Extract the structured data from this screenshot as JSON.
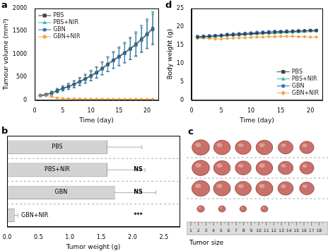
{
  "chart_data": [
    {
      "panel_label": "a",
      "type": "line",
      "x_label": "Time (day)",
      "y_label": "Tumour volume (mm³)",
      "x": [
        1,
        2,
        3,
        4,
        5,
        6,
        7,
        8,
        9,
        10,
        11,
        12,
        13,
        14,
        15,
        16,
        17,
        18,
        19,
        20,
        21
      ],
      "xlim": [
        0,
        22
      ],
      "xticks": [
        0,
        5,
        10,
        15,
        20
      ],
      "ylim": [
        0,
        2000
      ],
      "yticks": [
        0,
        500,
        1000,
        1500,
        2000
      ],
      "grid": false,
      "legend": "upper left",
      "series": [
        {
          "name": "PBS",
          "color": "#404040",
          "marker": "square",
          "values": [
            100,
            120,
            160,
            210,
            260,
            300,
            350,
            410,
            470,
            540,
            610,
            700,
            790,
            880,
            960,
            1040,
            1130,
            1230,
            1340,
            1450,
            1570
          ],
          "errors": [
            20,
            25,
            35,
            45,
            55,
            65,
            75,
            85,
            95,
            110,
            120,
            140,
            160,
            180,
            200,
            220,
            240,
            260,
            290,
            320,
            350
          ]
        },
        {
          "name": "PBS+NIR",
          "color": "#3cb8b0",
          "marker": "triangle",
          "values": [
            95,
            115,
            155,
            205,
            255,
            295,
            345,
            400,
            460,
            530,
            600,
            690,
            780,
            870,
            950,
            1030,
            1120,
            1220,
            1330,
            1440,
            1580
          ],
          "errors": [
            20,
            25,
            35,
            45,
            55,
            65,
            75,
            85,
            95,
            110,
            120,
            140,
            160,
            180,
            200,
            220,
            240,
            260,
            290,
            320,
            350
          ]
        },
        {
          "name": "GBN",
          "color": "#3a6fb5",
          "marker": "circle",
          "values": [
            100,
            118,
            150,
            200,
            250,
            290,
            340,
            395,
            455,
            520,
            590,
            680,
            770,
            860,
            940,
            1020,
            1110,
            1200,
            1310,
            1430,
            1540
          ],
          "errors": [
            20,
            25,
            30,
            40,
            50,
            60,
            70,
            80,
            90,
            100,
            115,
            130,
            150,
            170,
            190,
            210,
            230,
            250,
            270,
            300,
            330
          ]
        },
        {
          "name": "GBN+NIR",
          "color": "#f5a34a",
          "marker": "diamond",
          "values": [
            95,
            100,
            80,
            45,
            35,
            30,
            28,
            25,
            25,
            22,
            22,
            20,
            20,
            20,
            18,
            18,
            18,
            18,
            18,
            18,
            18
          ],
          "errors": [
            15,
            15,
            12,
            8,
            6,
            5,
            5,
            5,
            5,
            5,
            5,
            5,
            5,
            5,
            5,
            5,
            5,
            5,
            5,
            5,
            5
          ]
        }
      ]
    },
    {
      "panel_label": "b",
      "type": "bar",
      "orientation": "horizontal",
      "x_label": "Tumor weight (g)",
      "categories": [
        "PBS",
        "PBS+NIR",
        "GBN",
        "GBN+NIR"
      ],
      "values": [
        1.6,
        1.6,
        1.72,
        0.12
      ],
      "errors": [
        0.55,
        0.6,
        0.65,
        0.05
      ],
      "annotations": [
        null,
        "NS",
        "NS",
        "***"
      ],
      "color": "#d3d3d3",
      "xlim": [
        0,
        2.75
      ],
      "xticks": [
        {
          "value": 0,
          "label": "0.0"
        },
        0.5,
        {
          "value": 1,
          "label": "1.0"
        },
        1.5,
        {
          "value": 2,
          "label": "2.0"
        },
        2.5
      ],
      "tick_labels": "x",
      "grid": false
    },
    {
      "panel_label": "d",
      "type": "line",
      "x_label": "Time (day)",
      "y_label": "Body weight (g)",
      "x": [
        1,
        2,
        3,
        4,
        5,
        6,
        7,
        8,
        9,
        10,
        11,
        12,
        13,
        14,
        15,
        16,
        17,
        18,
        19,
        20,
        21
      ],
      "xlim": [
        0,
        22
      ],
      "xticks": [
        0,
        5,
        10,
        15,
        20
      ],
      "ylim": [
        0,
        25
      ],
      "yticks": [
        0,
        5,
        10,
        15,
        20,
        25
      ],
      "grid": false,
      "legend": "lower right",
      "series": [
        {
          "name": "PBS",
          "color": "#404040",
          "marker": "square",
          "values": [
            17.2,
            17.3,
            17.4,
            17.5,
            17.6,
            17.8,
            17.8,
            17.9,
            18.0,
            18.1,
            18.2,
            18.3,
            18.4,
            18.5,
            18.6,
            18.6,
            18.7,
            18.8,
            18.9,
            19.0,
            19.0
          ]
        },
        {
          "name": "PBS+NIR",
          "color": "#3cb8b0",
          "marker": "triangle",
          "values": [
            17.0,
            17.1,
            17.2,
            17.3,
            17.4,
            17.5,
            17.6,
            17.7,
            17.8,
            17.9,
            18.0,
            18.1,
            18.1,
            18.2,
            18.3,
            18.4,
            18.4,
            18.5,
            18.6,
            18.7,
            18.7
          ]
        },
        {
          "name": "GBN",
          "color": "#3a6fb5",
          "marker": "circle",
          "values": [
            17.3,
            17.4,
            17.5,
            17.6,
            17.7,
            17.9,
            18.0,
            18.1,
            18.2,
            18.3,
            18.4,
            18.5,
            18.6,
            18.7,
            18.7,
            18.8,
            18.8,
            18.9,
            18.9,
            19.0,
            19.0
          ]
        },
        {
          "name": "GBN+NIR",
          "color": "#f5a34a",
          "marker": "diamond",
          "values": [
            16.8,
            16.9,
            16.8,
            16.7,
            16.7,
            16.8,
            16.9,
            17.0,
            17.0,
            17.1,
            17.2,
            17.2,
            17.3,
            17.3,
            17.4,
            17.4,
            17.4,
            17.3,
            17.3,
            17.2,
            17.2
          ]
        }
      ]
    }
  ],
  "photo": {
    "panel_label": "c",
    "tumor_counts": [
      6,
      6,
      6,
      4
    ],
    "ruler_labels": [
      1,
      2,
      3,
      4,
      5,
      6,
      7,
      8,
      9,
      10,
      11,
      12,
      13,
      14,
      15,
      16,
      17,
      18
    ],
    "caption": "Tumor size"
  }
}
